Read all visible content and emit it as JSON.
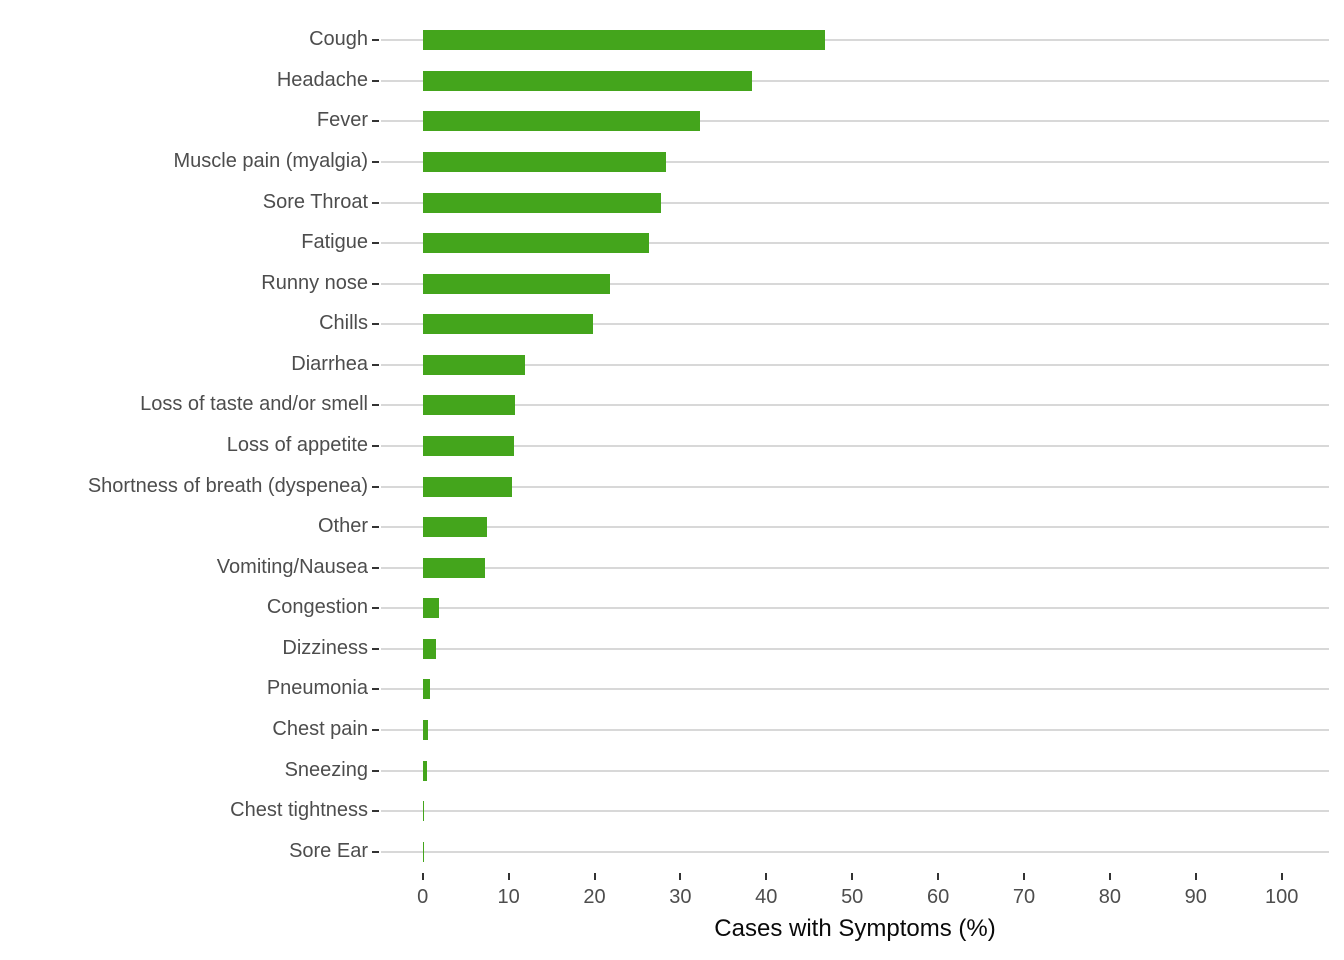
{
  "chart_data": {
    "type": "bar",
    "orientation": "horizontal",
    "title": "",
    "xlabel": "Cases with Symptoms (%)",
    "ylabel": "",
    "xlim": [
      0,
      100
    ],
    "x_ticks": [
      0,
      10,
      20,
      30,
      40,
      50,
      60,
      70,
      80,
      90,
      100
    ],
    "grid": "horizontal-major-y",
    "legend": "none",
    "categories": [
      "Cough",
      "Headache",
      "Fever",
      "Muscle pain (myalgia)",
      "Sore Throat",
      "Fatigue",
      "Runny nose",
      "Chills",
      "Diarrhea",
      "Loss of taste and/or smell",
      "Loss of appetite",
      "Shortness of breath (dyspenea)",
      "Other",
      "Vomiting/Nausea",
      "Congestion",
      "Dizziness",
      "Pneumonia",
      "Chest pain",
      "Sneezing",
      "Chest tightness",
      "Sore Ear"
    ],
    "values": [
      46.8,
      38.3,
      32.3,
      28.3,
      27.7,
      26.3,
      21.8,
      19.8,
      11.9,
      10.7,
      10.6,
      10.4,
      7.5,
      7.3,
      1.9,
      1.6,
      0.8,
      0.6,
      0.55,
      0.2,
      0.1
    ]
  },
  "colors": {
    "bar": "#44a51c",
    "gridline": "#d8d8d8",
    "axis_tick": "#333333",
    "tick_label": "#4d4d4d",
    "axis_title": "#0a0a0a",
    "background": "#ffffff"
  }
}
